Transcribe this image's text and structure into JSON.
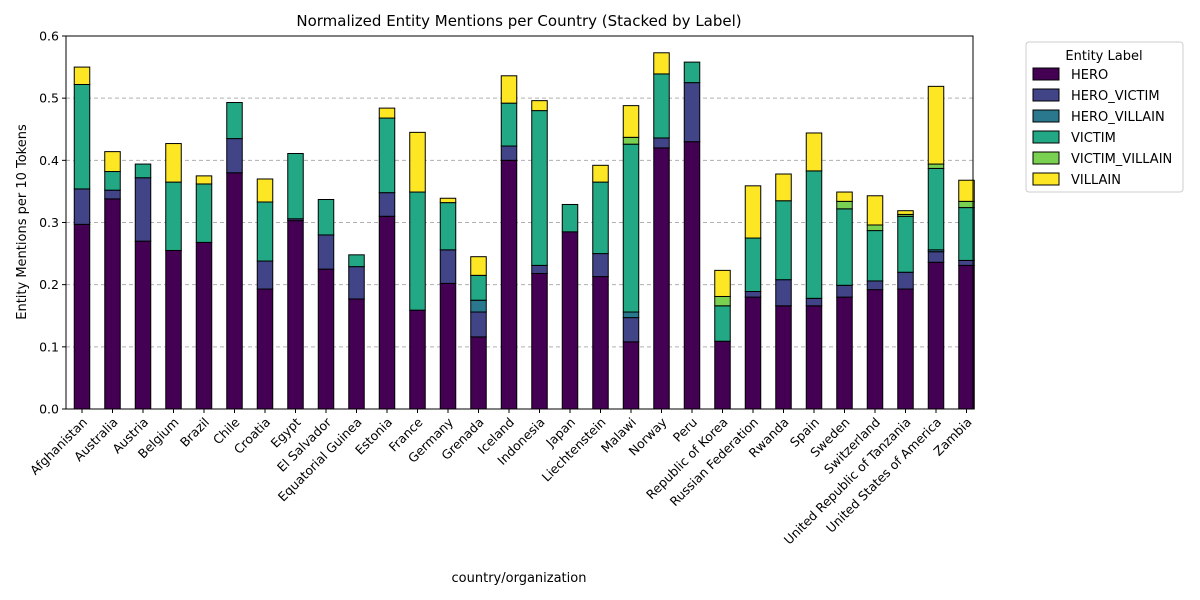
{
  "chart_data": {
    "type": "bar",
    "stacked": true,
    "title": "Normalized Entity Mentions per Country (Stacked by Label)",
    "xlabel": "country/organization",
    "ylabel": "Entity Mentions per 10 Tokens",
    "ylim": [
      0,
      0.6
    ],
    "yticks": [
      "0.0",
      "0.1",
      "0.2",
      "0.3",
      "0.4",
      "0.5",
      "0.6"
    ],
    "grid": "y-dashed",
    "legend": {
      "title": "Entity Label",
      "placement": "outside-top-right"
    },
    "categories": [
      "Afghanistan",
      "Australia",
      "Austria",
      "Belgium",
      "Brazil",
      "Chile",
      "Croatia",
      "Egypt",
      "El Salvador",
      "Equatorial Guinea",
      "Estonia",
      "France",
      "Germany",
      "Grenada",
      "Iceland",
      "Indonesia",
      "Japan",
      "Liechtenstein",
      "Malawi",
      "Norway",
      "Peru",
      "Republic of Korea",
      "Russian Federation",
      "Rwanda",
      "Spain",
      "Sweden",
      "Switzerland",
      "United Republic of Tanzania",
      "United States of America",
      "Zambia"
    ],
    "series": [
      {
        "name": "HERO",
        "color": "#440154",
        "values": [
          0.297,
          0.338,
          0.27,
          0.255,
          0.268,
          0.38,
          0.193,
          0.303,
          0.225,
          0.177,
          0.31,
          0.159,
          0.202,
          0.116,
          0.4,
          0.218,
          0.285,
          0.213,
          0.108,
          0.42,
          0.43,
          0.109,
          0.18,
          0.166,
          0.166,
          0.18,
          0.192,
          0.193,
          0.236,
          0.231
        ]
      },
      {
        "name": "HERO_VICTIM",
        "color": "#414487",
        "values": [
          0.057,
          0.014,
          0.102,
          0,
          0,
          0.055,
          0.045,
          0.003,
          0.055,
          0.052,
          0.038,
          0,
          0.054,
          0.04,
          0.023,
          0.013,
          0,
          0.037,
          0.039,
          0.016,
          0.095,
          0,
          0.009,
          0.042,
          0.012,
          0.019,
          0.014,
          0.027,
          0.017,
          0.008
        ]
      },
      {
        "name": "HERO_VILLAIN",
        "color": "#2a788e",
        "values": [
          0,
          0,
          0,
          0,
          0,
          0,
          0,
          0,
          0,
          0,
          0,
          0,
          0,
          0.019,
          0,
          0,
          0,
          0,
          0.009,
          0,
          0,
          0,
          0,
          0,
          0,
          0,
          0,
          0,
          0.003,
          0
        ]
      },
      {
        "name": "VICTIM",
        "color": "#22a884",
        "values": [
          0.168,
          0.03,
          0.022,
          0.11,
          0.094,
          0.058,
          0.095,
          0.105,
          0.057,
          0.019,
          0.12,
          0.19,
          0.076,
          0.04,
          0.069,
          0.249,
          0.044,
          0.115,
          0.27,
          0.103,
          0.033,
          0.057,
          0.086,
          0.127,
          0.205,
          0.123,
          0.081,
          0.09,
          0.131,
          0.085
        ]
      },
      {
        "name": "VICTIM_VILLAIN",
        "color": "#7ad151",
        "values": [
          0,
          0,
          0,
          0,
          0,
          0,
          0,
          0,
          0,
          0,
          0,
          0,
          0,
          0,
          0,
          0,
          0,
          0,
          0.011,
          0,
          0,
          0.015,
          0,
          0,
          0,
          0.012,
          0.009,
          0.003,
          0.007,
          0.01
        ]
      },
      {
        "name": "VILLAIN",
        "color": "#fde725",
        "values": [
          0.028,
          0.032,
          0,
          0.062,
          0.013,
          0,
          0.037,
          0,
          0,
          0,
          0.016,
          0.096,
          0.007,
          0.03,
          0.044,
          0.016,
          0,
          0.027,
          0.051,
          0.034,
          0,
          0.042,
          0.084,
          0.043,
          0.061,
          0.015,
          0.047,
          0.006,
          0.125,
          0.034
        ]
      }
    ]
  }
}
